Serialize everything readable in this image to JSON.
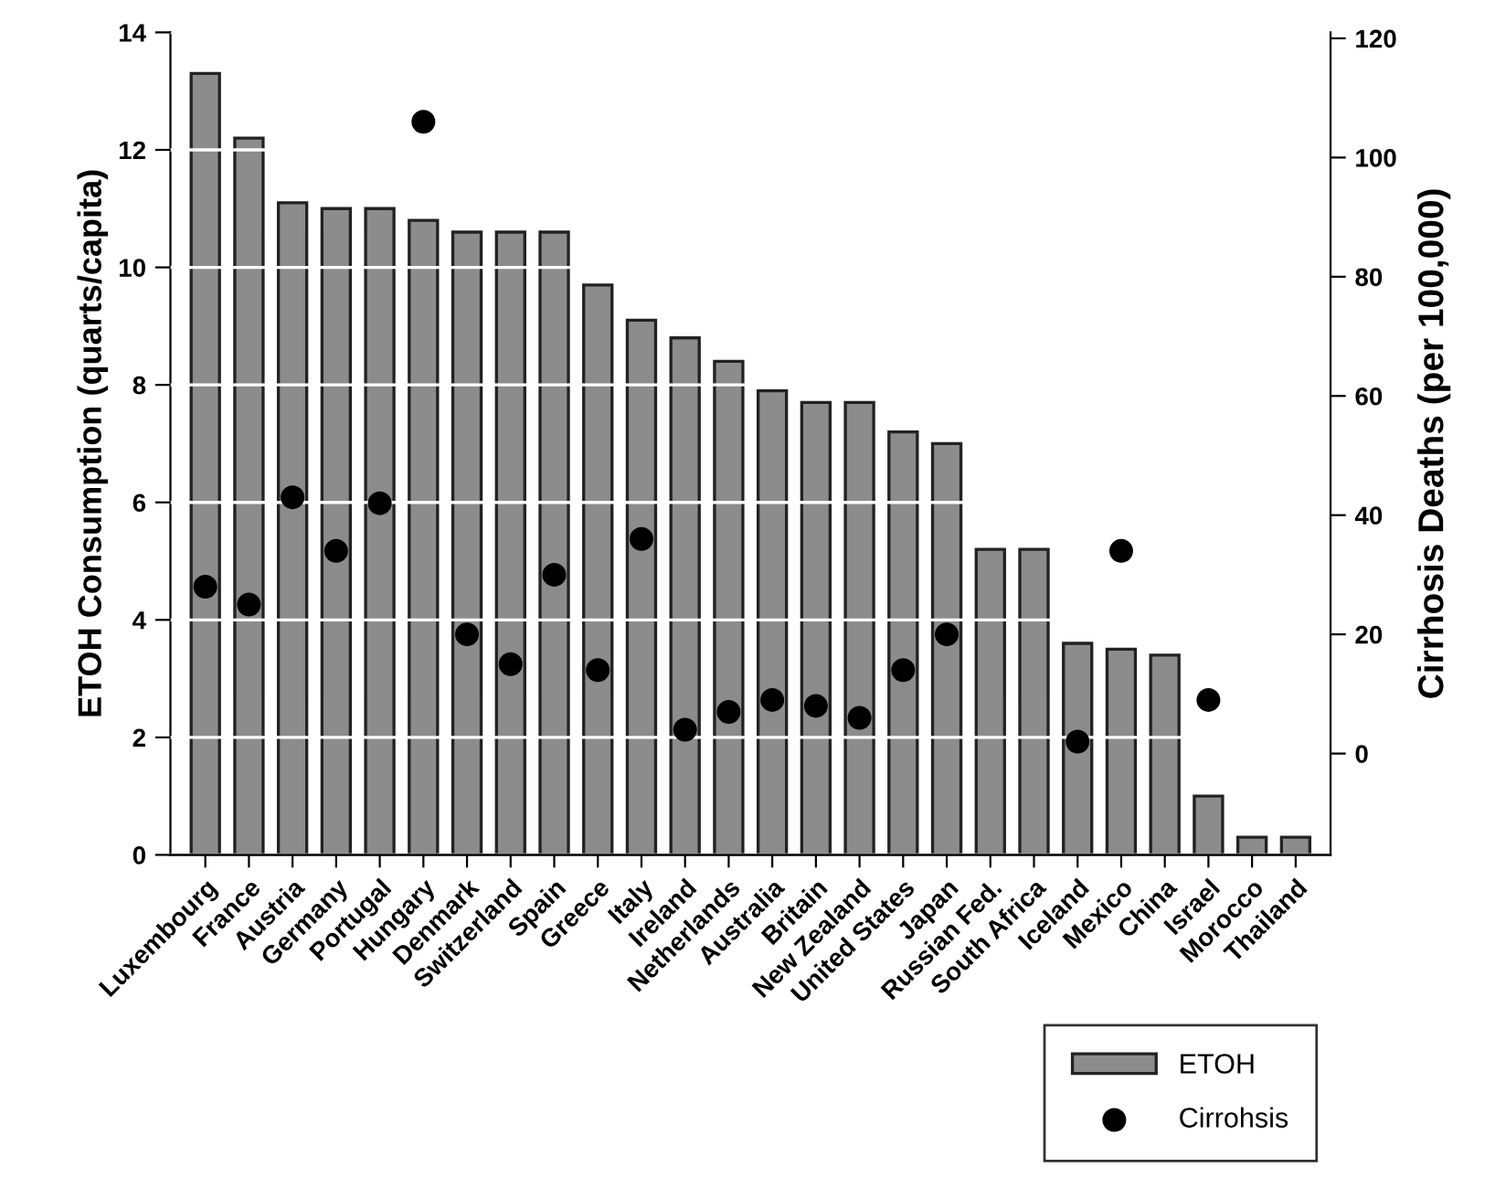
{
  "chart_data": {
    "type": "bar",
    "categories": [
      "Luxembourg",
      "France",
      "Austria",
      "Germany",
      "Portugal",
      "Hungary",
      "Denmark",
      "Switzerland",
      "Spain",
      "Greece",
      "Italy",
      "Ireland",
      "Netherlands",
      "Australia",
      "Britain",
      "New Zealand",
      "United States",
      "Japan",
      "Russian Fed.",
      "South Africa",
      "Iceland",
      "Mexico",
      "China",
      "Israel",
      "Morocco",
      "Thailand"
    ],
    "ylabel": "ETOH Consumption (quarts/capita)",
    "y2label": "Cirrhosis Deaths (per 100,000)",
    "ylim": [
      0,
      14
    ],
    "yticks": [
      0,
      2,
      4,
      6,
      8,
      10,
      12,
      14
    ],
    "y2lim": [
      -17,
      121
    ],
    "y2ticks": [
      0,
      20,
      40,
      60,
      80,
      100,
      120
    ],
    "grid": "y",
    "legend": "bottom right",
    "series": [
      {
        "name": "ETOH",
        "color": "#8c8c8c",
        "values": [
          13.3,
          12.2,
          11.1,
          11.0,
          11.0,
          10.8,
          10.6,
          10.6,
          10.6,
          9.7,
          9.1,
          8.8,
          8.4,
          7.9,
          7.7,
          7.7,
          7.2,
          7.0,
          5.2,
          5.2,
          3.6,
          3.5,
          3.4,
          1.0,
          0.3,
          0.3
        ]
      },
      {
        "name": "Cirrohsis",
        "type": "scatter",
        "axis": "y2",
        "color": "#000000",
        "marker": "circle",
        "values": [
          28,
          25,
          43,
          34,
          42,
          106,
          20,
          15,
          30,
          14,
          36,
          4,
          7,
          9,
          8,
          6,
          14,
          20,
          null,
          null,
          2,
          34,
          null,
          9,
          null,
          null
        ]
      }
    ]
  }
}
